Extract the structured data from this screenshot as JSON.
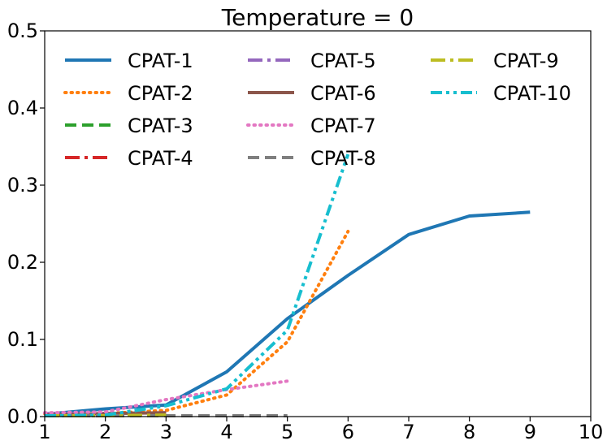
{
  "chart_data": {
    "type": "line",
    "title": "Temperature = 0",
    "xlabel": "",
    "ylabel": "",
    "xlim": [
      1,
      10
    ],
    "ylim": [
      0,
      0.5
    ],
    "xticks": [
      1,
      2,
      3,
      4,
      5,
      6,
      7,
      8,
      9,
      10
    ],
    "yticks": [
      0.0,
      0.1,
      0.2,
      0.3,
      0.4,
      0.5
    ],
    "xtick_labels": [
      "1",
      "2",
      "3",
      "4",
      "5",
      "6",
      "7",
      "8",
      "9",
      "10"
    ],
    "ytick_labels": [
      "0.0",
      "0.1",
      "0.2",
      "0.3",
      "0.4",
      "0.5"
    ],
    "grid": false,
    "legend_position": "top",
    "series": [
      {
        "name": "CPAT-1",
        "color": "#1f77b4",
        "style": "solid",
        "x": [
          1,
          2,
          3,
          4,
          5,
          6,
          7,
          8,
          9
        ],
        "values": [
          0.003,
          0.01,
          0.015,
          0.058,
          0.127,
          0.183,
          0.236,
          0.26,
          0.265
        ]
      },
      {
        "name": "CPAT-2",
        "color": "#ff7f0e",
        "style": "dotted",
        "x": [
          1,
          2,
          3,
          4,
          5,
          6
        ],
        "values": [
          0.004,
          0.004,
          0.008,
          0.028,
          0.097,
          0.24
        ]
      },
      {
        "name": "CPAT-3",
        "color": "#2ca02c",
        "style": "dashed",
        "x": [
          1,
          2,
          3
        ],
        "values": [
          0.001,
          0.002,
          0.003
        ]
      },
      {
        "name": "CPAT-4",
        "color": "#d62728",
        "style": "dashdot",
        "x": [
          1,
          2,
          3
        ],
        "values": [
          0.002,
          0.003,
          0.004
        ]
      },
      {
        "name": "CPAT-5",
        "color": "#9467bd",
        "style": "dashdot",
        "x": [
          1,
          2,
          3
        ],
        "values": [
          0.004,
          0.004,
          0.005
        ]
      },
      {
        "name": "CPAT-6",
        "color": "#8c564b",
        "style": "solid",
        "x": [
          1,
          2,
          3
        ],
        "values": [
          0.002,
          0.004,
          0.005
        ]
      },
      {
        "name": "CPAT-7",
        "color": "#e377c2",
        "style": "dotted",
        "x": [
          1,
          2,
          3,
          4,
          5
        ],
        "values": [
          0.005,
          0.006,
          0.022,
          0.035,
          0.046
        ]
      },
      {
        "name": "CPAT-8",
        "color": "#7f7f7f",
        "style": "dashed",
        "x": [
          1,
          2,
          3,
          4,
          5
        ],
        "values": [
          0.001,
          0.001,
          0.001,
          0.001,
          0.001
        ]
      },
      {
        "name": "CPAT-9",
        "color": "#bcbd22",
        "style": "dashdot",
        "x": [
          1,
          2,
          3
        ],
        "values": [
          0.001,
          0.001,
          0.002
        ]
      },
      {
        "name": "CPAT-10",
        "color": "#17becf",
        "style": "dashdotdot",
        "x": [
          1,
          2,
          3,
          4,
          5,
          6
        ],
        "values": [
          0.001,
          0.002,
          0.014,
          0.036,
          0.112,
          0.34
        ]
      }
    ]
  }
}
